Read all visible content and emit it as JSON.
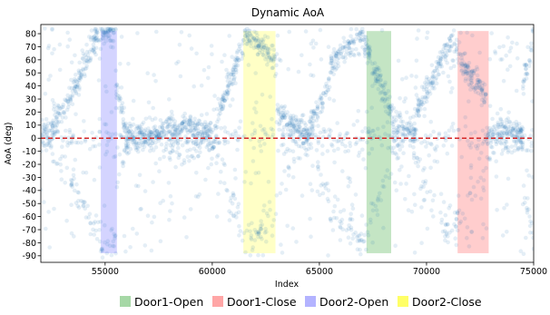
{
  "chart_data": {
    "type": "scatter",
    "title": "Dynamic AoA",
    "xlabel": "Index",
    "ylabel": "AoA (deg)",
    "xlim": [
      52000,
      75000
    ],
    "ylim": [
      -95,
      87
    ],
    "x_ticks": [
      55000,
      60000,
      65000,
      70000,
      75000
    ],
    "y_ticks": [
      80,
      70,
      60,
      50,
      40,
      30,
      20,
      10,
      0,
      -10,
      -20,
      -30,
      -40,
      -50,
      -60,
      -70,
      -80,
      -90
    ],
    "grid": false,
    "point_color": "#1f77b4",
    "point_alpha": 0.12,
    "reference_line": {
      "y": 0,
      "color": "#d62728",
      "style": "dashed"
    },
    "segments": [
      {
        "x0": 52000,
        "x1": 52600,
        "y0": 5,
        "y1": 5
      },
      {
        "x0": 52600,
        "x1": 53800,
        "y0": 10,
        "y1": 45
      },
      {
        "x0": 53800,
        "x1": 54600,
        "y0": 45,
        "y1": 78
      },
      {
        "x0": 54600,
        "x1": 55500,
        "y0": 80,
        "y1": 82
      },
      {
        "x0": 55500,
        "x1": 56000,
        "y0": 45,
        "y1": 0
      },
      {
        "x0": 56000,
        "x1": 57500,
        "y0": 2,
        "y1": 2
      },
      {
        "x0": 57500,
        "x1": 59000,
        "y0": 5,
        "y1": 10
      },
      {
        "x0": 59000,
        "x1": 60200,
        "y0": 5,
        "y1": 5
      },
      {
        "x0": 60200,
        "x1": 61500,
        "y0": 15,
        "y1": 75
      },
      {
        "x0": 61500,
        "x1": 63000,
        "y0": 80,
        "y1": 60
      },
      {
        "x0": 63000,
        "x1": 64500,
        "y0": 20,
        "y1": 3
      },
      {
        "x0": 64500,
        "x1": 65500,
        "y0": 5,
        "y1": 45
      },
      {
        "x0": 65500,
        "x1": 67000,
        "y0": 55,
        "y1": 80
      },
      {
        "x0": 67000,
        "x1": 68400,
        "y0": 78,
        "y1": 20
      },
      {
        "x0": 68400,
        "x1": 69500,
        "y0": 10,
        "y1": 5
      },
      {
        "x0": 69500,
        "x1": 71000,
        "y0": 20,
        "y1": 70
      },
      {
        "x0": 71000,
        "x1": 72800,
        "y0": 75,
        "y1": 30
      },
      {
        "x0": 72800,
        "x1": 74500,
        "y0": 5,
        "y1": 5
      },
      {
        "x0": 74500,
        "x1": 75000,
        "y0": 40,
        "y1": 80
      }
    ],
    "regions": [
      {
        "label": "Door1-Open",
        "x0": 67200,
        "x1": 68350,
        "color": "#2ca02c"
      },
      {
        "label": "Door1-Close",
        "x0": 71450,
        "x1": 72900,
        "color": "#ff4d4d"
      },
      {
        "label": "Door2-Open",
        "x0": 54800,
        "x1": 55550,
        "color": "#6666ff"
      },
      {
        "label": "Door2-Close",
        "x0": 61450,
        "x1": 62950,
        "color": "#ffff33"
      }
    ],
    "region_y_range": [
      -88,
      82
    ],
    "legend": {
      "placement": "bottom-center",
      "entries": [
        {
          "label": "Door1-Open",
          "color": "#a6d8a6"
        },
        {
          "label": "Door1-Close",
          "color": "#ffa6a6"
        },
        {
          "label": "Door2-Open",
          "color": "#b3b3ff"
        },
        {
          "label": "Door2-Close",
          "color": "#ffff66"
        }
      ]
    }
  }
}
